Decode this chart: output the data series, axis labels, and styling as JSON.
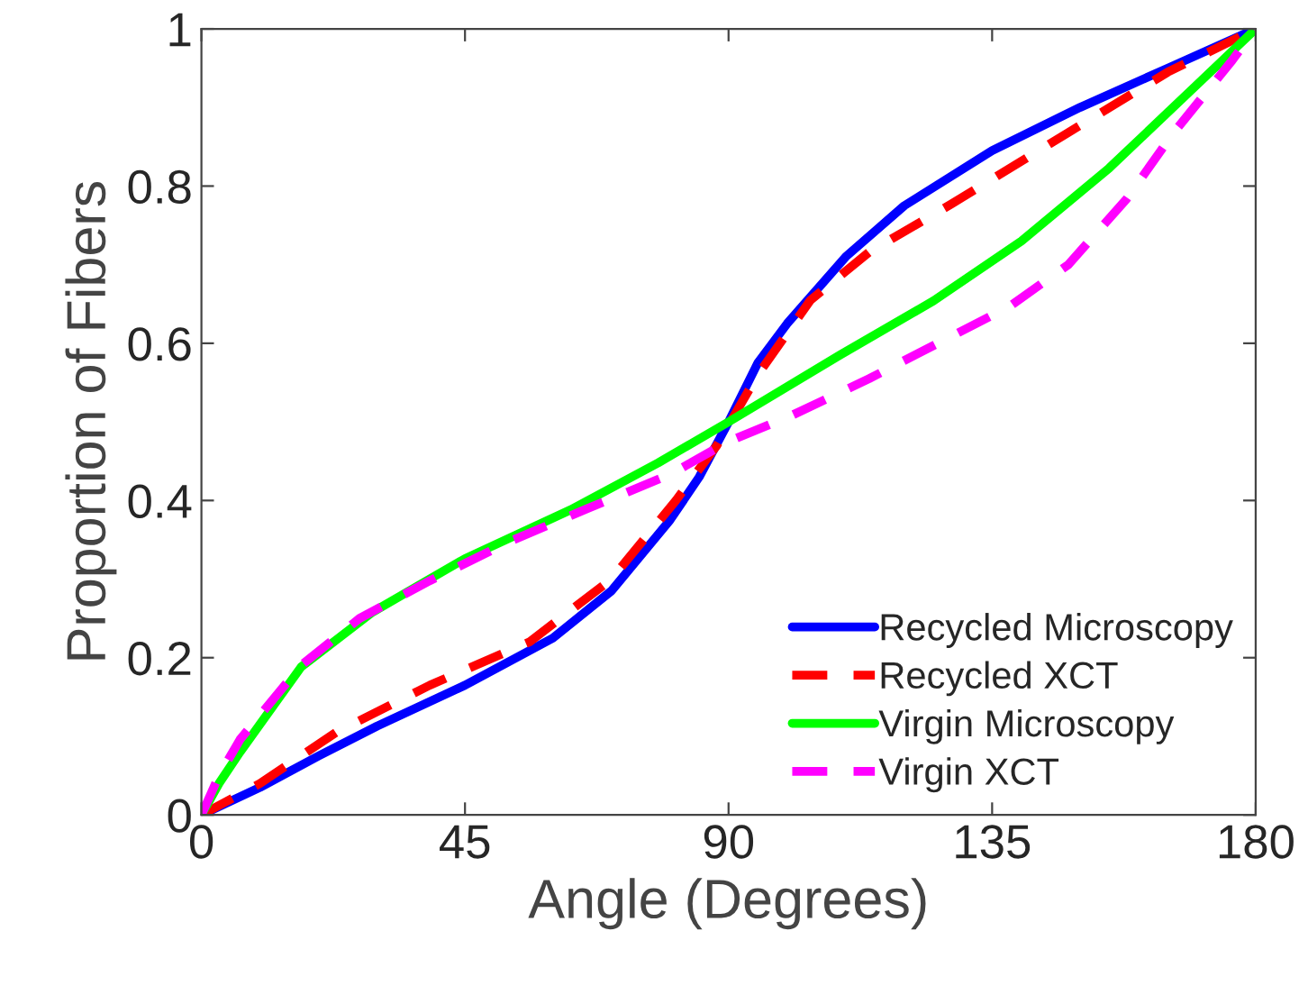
{
  "chart_data": {
    "type": "line",
    "xlabel": "Angle (Degrees)",
    "ylabel": "Proportion of Fibers",
    "xlim": [
      0,
      180
    ],
    "xticks": [
      0,
      45,
      90,
      135,
      180
    ],
    "ylim": [
      0,
      1
    ],
    "yticks": [
      0,
      0.2,
      0.4,
      0.6,
      0.8,
      1
    ],
    "grid": false,
    "legend": "bottom right",
    "marker": "none",
    "series": [
      {
        "name": "Recycled Microscopy",
        "color": "#0000ff",
        "line_style": "solid",
        "x": [
          0,
          10,
          20,
          30,
          45,
          60,
          70,
          80,
          85,
          90,
          95,
          100,
          110,
          120,
          135,
          150,
          165,
          180
        ],
        "values": [
          0,
          0.035,
          0.075,
          0.113,
          0.165,
          0.225,
          0.285,
          0.375,
          0.43,
          0.5,
          0.575,
          0.625,
          0.71,
          0.775,
          0.845,
          0.9,
          0.95,
          1
        ]
      },
      {
        "name": "Recycled XCT",
        "color": "#ff0000",
        "line_style": "dashed",
        "x": [
          0,
          10,
          23,
          39,
          56,
          70,
          81,
          88,
          95,
          104,
          114,
          128,
          148,
          165,
          180
        ],
        "values": [
          0,
          0.04,
          0.105,
          0.165,
          0.22,
          0.3,
          0.4,
          0.47,
          0.56,
          0.655,
          0.716,
          0.777,
          0.868,
          0.945,
          1
        ]
      },
      {
        "name": "Virgin Microscopy",
        "color": "#00ff00",
        "line_style": "solid",
        "x": [
          0,
          3,
          6.6,
          17,
          29,
          45,
          63,
          78,
          90,
          109,
          125,
          140,
          155,
          169,
          180
        ],
        "values": [
          0,
          0.04,
          0.08,
          0.188,
          0.257,
          0.326,
          0.388,
          0.448,
          0.5,
          0.585,
          0.654,
          0.73,
          0.823,
          0.922,
          1
        ]
      },
      {
        "name": "Virgin XCT",
        "color": "#ff00ff",
        "line_style": "dashed",
        "x": [
          0,
          3,
          6.6,
          17,
          27,
          39,
          53,
          66,
          80,
          90,
          101,
          114,
          126,
          138,
          148,
          158,
          166,
          176,
          180
        ],
        "values": [
          0,
          0.05,
          0.096,
          0.19,
          0.25,
          0.298,
          0.349,
          0.39,
          0.433,
          0.475,
          0.509,
          0.555,
          0.601,
          0.647,
          0.7,
          0.784,
          0.868,
          0.96,
          1
        ]
      }
    ]
  }
}
